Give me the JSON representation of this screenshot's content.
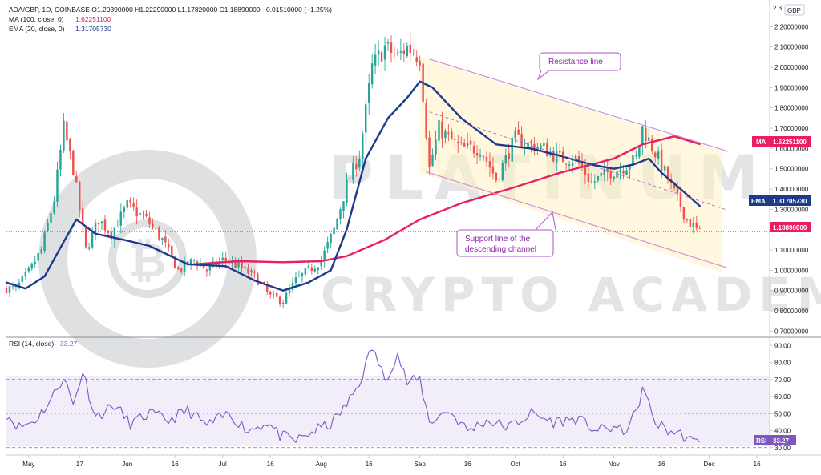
{
  "legend": {
    "main": "ADA/GBP, 1D, COINBASE  O1.20390000  H1.22290000  L1.17820000  C1.18890000  −0.01510000 (−1.25%)",
    "ma_label": "MA (100, close, 0)",
    "ma_value": "1.62251100",
    "ema_label": "EMA (20, close, 0)",
    "ema_value": "1.31705730",
    "rsi_label": "RSI (14, close)",
    "rsi_value": "33.27"
  },
  "currency": "GBP",
  "price_axis": {
    "top_partial": "2.3",
    "ticks": [
      "2.20000000",
      "2.10000000",
      "2.00000000",
      "1.90000000",
      "1.80000000",
      "1.70000000",
      "1.60000000",
      "1.50000000",
      "1.40000000",
      "1.30000000",
      "1.20000000",
      "1.10000000",
      "1.00000000",
      "0.90000000",
      "0.80000000",
      "0.70000000"
    ]
  },
  "rsi_axis": {
    "ticks": [
      "90.00",
      "80.00",
      "70.00",
      "60.00",
      "50.00",
      "40.00",
      "30.00"
    ]
  },
  "price_tags": {
    "ma": {
      "label": "MA",
      "value": "1.62251100",
      "color": "#e91e63"
    },
    "ema": {
      "label": "EMA",
      "value": "1.31705730",
      "color": "#1e3a8a"
    },
    "last": {
      "value": "1.18890000",
      "color": "#e91e63"
    },
    "rsi": {
      "label": "RSI",
      "value": "33.27",
      "color": "#7e57c2"
    }
  },
  "x_axis": {
    "labels": [
      "May",
      "17",
      "Jun",
      "16",
      "Jul",
      "16",
      "Aug",
      "16",
      "Sep",
      "16",
      "Oct",
      "16",
      "Nov",
      "16",
      "Dec",
      "16"
    ]
  },
  "annotations": {
    "resistance": "Resistance line",
    "support_line1": "Support line of the",
    "support_line2": "descending channel"
  },
  "watermark": {
    "line1": "PLATINUM",
    "line2": "CRYPTO ACADEMY"
  },
  "colors": {
    "up": "#26a69a",
    "down": "#ef5350",
    "ma": "#e91e63",
    "ema": "#1e3a8a",
    "rsi": "#7e57c2",
    "channel": "#ce93d8"
  },
  "chart_data": [
    {
      "type": "candlestick",
      "title": "ADA/GBP, 1D, COINBASE",
      "ylim": [
        0.67,
        2.3
      ],
      "x_range": [
        "Apr 24",
        "Dec 20"
      ],
      "x": [
        "Apr 27",
        "May 1",
        "May 5",
        "May 9",
        "May 12",
        "May 15",
        "May 19",
        "May 23",
        "May 27",
        "Jun 1",
        "Jun 7",
        "Jun 12",
        "Jun 17",
        "Jun 22",
        "Jun 26",
        "Jul 1",
        "Jul 6",
        "Jul 11",
        "Jul 16",
        "Jul 20",
        "Jul 24",
        "Jul 28",
        "Aug 1",
        "Aug 5",
        "Aug 9",
        "Aug 13",
        "Aug 17",
        "Aug 21",
        "Aug 25",
        "Aug 28",
        "Sep 1",
        "Sep 4",
        "Sep 7",
        "Sep 10",
        "Sep 14",
        "Sep 20",
        "Sep 25",
        "Oct 1",
        "Oct 5",
        "Oct 10",
        "Oct 15",
        "Oct 20",
        "Oct 25",
        "Oct 30",
        "Nov 3",
        "Nov 8",
        "Nov 10",
        "Nov 15",
        "Nov 20",
        "Nov 24",
        "Nov 28"
      ],
      "close": [
        0.91,
        0.99,
        1.1,
        1.35,
        1.7,
        1.5,
        1.1,
        1.25,
        1.18,
        1.32,
        1.25,
        1.15,
        1.0,
        1.05,
        1.0,
        1.05,
        1.02,
        0.97,
        0.87,
        0.85,
        0.95,
        1.0,
        1.05,
        1.2,
        1.42,
        1.57,
        2.0,
        2.1,
        2.05,
        2.1,
        2.05,
        1.5,
        1.7,
        1.65,
        1.6,
        1.6,
        1.45,
        1.65,
        1.62,
        1.6,
        1.55,
        1.55,
        1.43,
        1.48,
        1.5,
        1.55,
        1.7,
        1.55,
        1.38,
        1.25,
        1.18
      ],
      "series": [
        {
          "name": "MA (100, close, 0)",
          "x": [
            "Jun 22",
            "Jul 6",
            "Jul 20",
            "Aug 1",
            "Aug 9",
            "Aug 21",
            "Sep 1",
            "Sep 14",
            "Oct 1",
            "Oct 15",
            "Nov 1",
            "Nov 10",
            "Nov 20",
            "Nov 28"
          ],
          "values": [
            1.03,
            1.045,
            1.04,
            1.045,
            1.07,
            1.15,
            1.25,
            1.33,
            1.41,
            1.48,
            1.55,
            1.62,
            1.66,
            1.622
          ]
        },
        {
          "name": "EMA (20, close, 0)",
          "x": [
            "Apr 24",
            "Apr 30",
            "May 6",
            "May 12",
            "May 16",
            "May 22",
            "May 31",
            "Jun 8",
            "Jun 20",
            "Jul 2",
            "Jul 11",
            "Jul 20",
            "Jul 28",
            "Aug 4",
            "Aug 9",
            "Aug 15",
            "Aug 22",
            "Aug 28",
            "Sep 1",
            "Sep 5",
            "Sep 14",
            "Sep 25",
            "Oct 6",
            "Oct 16",
            "Oct 25",
            "Nov 1",
            "Nov 7",
            "Nov 12",
            "Nov 16",
            "Nov 22",
            "Nov 28"
          ],
          "values": [
            0.94,
            0.91,
            0.97,
            1.14,
            1.25,
            1.18,
            1.15,
            1.12,
            1.03,
            1.02,
            0.95,
            0.9,
            0.94,
            1.0,
            1.2,
            1.55,
            1.75,
            1.85,
            1.93,
            1.9,
            1.75,
            1.62,
            1.6,
            1.56,
            1.52,
            1.5,
            1.52,
            1.55,
            1.48,
            1.4,
            1.317
          ]
        }
      ],
      "annotations": [
        "Resistance line",
        "Support line of the descending channel"
      ]
    },
    {
      "type": "line",
      "title": "RSI (14, close)",
      "ylim": [
        28,
        92
      ],
      "x": [
        "Apr 24",
        "Apr 28",
        "May 3",
        "May 8",
        "May 12",
        "May 15",
        "May 18",
        "May 22",
        "May 28",
        "Jun 2",
        "Jun 8",
        "Jun 14",
        "Jun 20",
        "Jun 26",
        "Jul 3",
        "Jul 9",
        "Jul 15",
        "Jul 19",
        "Jul 24",
        "Jul 30",
        "Aug 4",
        "Aug 9",
        "Aug 13",
        "Aug 17",
        "Aug 21",
        "Aug 25",
        "Aug 28",
        "Sep 1",
        "Sep 4",
        "Sep 10",
        "Sep 16",
        "Sep 22",
        "Sep 29",
        "Oct 6",
        "Oct 13",
        "Oct 20",
        "Oct 27",
        "Nov 1",
        "Nov 4",
        "Nov 8",
        "Nov 10",
        "Nov 14",
        "Nov 18",
        "Nov 22",
        "Nov 26",
        "Nov 28"
      ],
      "series": [
        {
          "name": "RSI (14, close)",
          "values": [
            50,
            42,
            46,
            58,
            72,
            55,
            75,
            48,
            55,
            44,
            50,
            46,
            52,
            43,
            50,
            40,
            45,
            37,
            34,
            40,
            44,
            55,
            68,
            89,
            70,
            85,
            68,
            70,
            45,
            52,
            40,
            46,
            42,
            50,
            45,
            47,
            40,
            42,
            39,
            50,
            65,
            45,
            40,
            38,
            33,
            33.27
          ]
        }
      ],
      "levels": [
        70,
        50,
        30
      ]
    }
  ]
}
